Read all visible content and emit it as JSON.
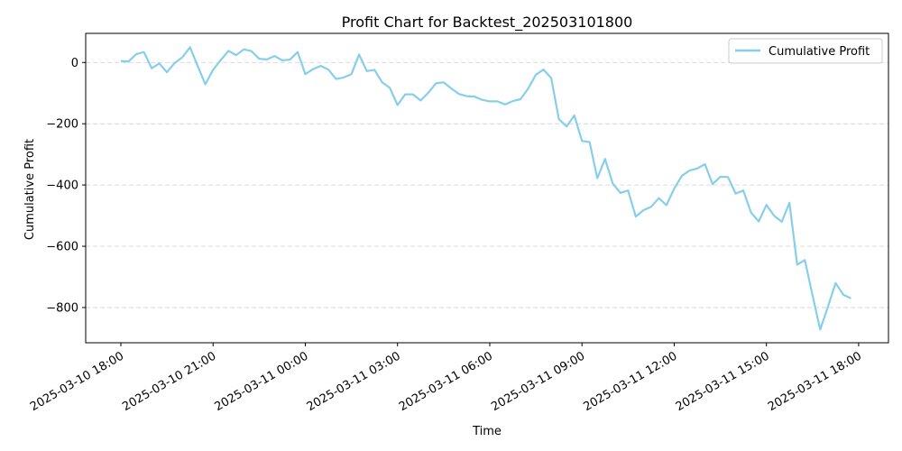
{
  "chart_data": {
    "type": "line",
    "title": "Profit Chart for Backtest_202503101800",
    "xlabel": "Time",
    "ylabel": "Cumulative Profit",
    "x_start": "2025-03-10 18:00",
    "ylim": [
      -915,
      95
    ],
    "xticks": [
      "2025-03-10 18:00",
      "2025-03-10 21:00",
      "2025-03-11 00:00",
      "2025-03-11 03:00",
      "2025-03-11 06:00",
      "2025-03-11 09:00",
      "2025-03-11 12:00",
      "2025-03-11 15:00",
      "2025-03-11 18:00"
    ],
    "yticks": [
      0,
      -200,
      -400,
      -600,
      -800
    ],
    "ytick_labels": [
      "0",
      "−200",
      "−400",
      "−600",
      "−800"
    ],
    "grid": "y-dashed",
    "legend_position": "top-right",
    "series": [
      {
        "name": "Cumulative Profit",
        "color": "#87CEEB",
        "x": [
          "2025-03-10 18:00",
          "2025-03-10 18:15",
          "2025-03-10 18:30",
          "2025-03-10 18:45",
          "2025-03-10 19:00",
          "2025-03-10 19:15",
          "2025-03-10 19:30",
          "2025-03-10 19:45",
          "2025-03-10 20:00",
          "2025-03-10 20:15",
          "2025-03-10 20:30",
          "2025-03-10 20:45",
          "2025-03-10 21:00",
          "2025-03-10 21:15",
          "2025-03-10 21:30",
          "2025-03-10 21:45",
          "2025-03-10 22:00",
          "2025-03-10 22:15",
          "2025-03-10 22:30",
          "2025-03-10 22:45",
          "2025-03-10 23:00",
          "2025-03-10 23:15",
          "2025-03-10 23:30",
          "2025-03-10 23:45",
          "2025-03-11 00:00",
          "2025-03-11 00:15",
          "2025-03-11 00:30",
          "2025-03-11 00:45",
          "2025-03-11 01:00",
          "2025-03-11 01:15",
          "2025-03-11 01:30",
          "2025-03-11 01:45",
          "2025-03-11 02:00",
          "2025-03-11 02:15",
          "2025-03-11 02:30",
          "2025-03-11 02:45",
          "2025-03-11 03:00",
          "2025-03-11 03:15",
          "2025-03-11 03:30",
          "2025-03-11 03:45",
          "2025-03-11 04:00",
          "2025-03-11 04:15",
          "2025-03-11 04:30",
          "2025-03-11 04:45",
          "2025-03-11 05:00",
          "2025-03-11 05:15",
          "2025-03-11 05:30",
          "2025-03-11 05:45",
          "2025-03-11 06:00",
          "2025-03-11 06:15",
          "2025-03-11 06:30",
          "2025-03-11 06:45",
          "2025-03-11 07:00",
          "2025-03-11 07:15",
          "2025-03-11 07:30",
          "2025-03-11 07:45",
          "2025-03-11 08:00",
          "2025-03-11 08:15",
          "2025-03-11 08:30",
          "2025-03-11 08:45",
          "2025-03-11 09:00",
          "2025-03-11 09:15",
          "2025-03-11 09:30",
          "2025-03-11 09:45",
          "2025-03-11 10:00",
          "2025-03-11 10:15",
          "2025-03-11 10:30",
          "2025-03-11 10:45",
          "2025-03-11 11:00",
          "2025-03-11 11:15",
          "2025-03-11 11:30",
          "2025-03-11 11:45",
          "2025-03-11 12:00",
          "2025-03-11 12:15",
          "2025-03-11 12:30",
          "2025-03-11 12:45",
          "2025-03-11 13:00",
          "2025-03-11 13:15",
          "2025-03-11 13:30",
          "2025-03-11 13:45",
          "2025-03-11 14:00",
          "2025-03-11 14:15",
          "2025-03-11 14:30",
          "2025-03-11 14:45",
          "2025-03-11 15:00",
          "2025-03-11 15:15",
          "2025-03-11 15:30",
          "2025-03-11 15:45",
          "2025-03-11 16:00",
          "2025-03-11 16:15",
          "2025-03-11 16:30",
          "2025-03-11 16:45",
          "2025-03-11 17:00",
          "2025-03-11 17:15",
          "2025-03-11 17:30",
          "2025-03-11 17:45"
        ],
        "values": [
          5,
          3,
          27,
          34,
          -19,
          -3,
          -32,
          -2,
          17,
          50,
          -12,
          -71,
          -24,
          8,
          38,
          24,
          43,
          37,
          12,
          10,
          21,
          7,
          9,
          34,
          -38,
          -22,
          -11,
          -23,
          -54,
          -49,
          -38,
          26,
          -28,
          -24,
          -65,
          -83,
          -139,
          -104,
          -104,
          -124,
          -99,
          -68,
          -65,
          -85,
          -103,
          -110,
          -111,
          -122,
          -127,
          -127,
          -137,
          -126,
          -120,
          -85,
          -40,
          -23,
          -51,
          -185,
          -209,
          -173,
          -256,
          -260,
          -378,
          -315,
          -395,
          -426,
          -418,
          -503,
          -482,
          -471,
          -443,
          -466,
          -412,
          -370,
          -353,
          -346,
          -332,
          -397,
          -373,
          -374,
          -428,
          -418,
          -490,
          -519,
          -465,
          -500,
          -520,
          -458,
          -660,
          -645,
          -760,
          -872,
          -798,
          -720,
          -758,
          -770
        ]
      }
    ]
  }
}
